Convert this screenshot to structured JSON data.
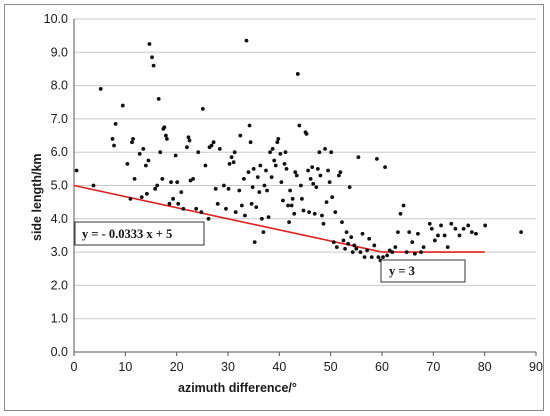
{
  "chart_data": {
    "type": "scatter",
    "title": "",
    "xlabel": "azimuth difference/°",
    "ylabel": "side length/km",
    "xlim": [
      0,
      90
    ],
    "ylim": [
      0,
      10
    ],
    "x_ticks": [
      "0",
      "10",
      "20",
      "30",
      "40",
      "50",
      "60",
      "70",
      "80",
      "90"
    ],
    "y_ticks": [
      "0.0",
      "1.0",
      "2.0",
      "3.0",
      "4.0",
      "5.0",
      "6.0",
      "7.0",
      "8.0",
      "9.0",
      "10.0"
    ],
    "grid": "horizontal",
    "colors": {
      "points": "#111111",
      "line": "#e01e1e",
      "grid": "#c8c8c8"
    },
    "points": [
      [
        0.5,
        5.45
      ],
      [
        3.8,
        5.0
      ],
      [
        5.2,
        7.9
      ],
      [
        7.5,
        6.4
      ],
      [
        7.8,
        6.2
      ],
      [
        8.1,
        6.85
      ],
      [
        9.5,
        7.4
      ],
      [
        10.4,
        5.65
      ],
      [
        11,
        4.6
      ],
      [
        11.3,
        6.3
      ],
      [
        11.5,
        6.4
      ],
      [
        11.8,
        5.2
      ],
      [
        12.8,
        5.95
      ],
      [
        13.2,
        4.65
      ],
      [
        13.5,
        6.1
      ],
      [
        14,
        5.6
      ],
      [
        14.2,
        4.75
      ],
      [
        14.5,
        5.75
      ],
      [
        14.7,
        9.25
      ],
      [
        15.2,
        8.85
      ],
      [
        15.5,
        8.6
      ],
      [
        15.8,
        4.9
      ],
      [
        16.2,
        5.0
      ],
      [
        16.5,
        7.6
      ],
      [
        16.8,
        6.0
      ],
      [
        17.2,
        5.2
      ],
      [
        17.4,
        6.7
      ],
      [
        17.6,
        6.75
      ],
      [
        17.9,
        6.5
      ],
      [
        18.1,
        6.4
      ],
      [
        18.6,
        4.45
      ],
      [
        18.9,
        5.1
      ],
      [
        19.3,
        4.6
      ],
      [
        19.8,
        5.9
      ],
      [
        20.1,
        5.1
      ],
      [
        20.3,
        4.45
      ],
      [
        20.9,
        4.8
      ],
      [
        21.3,
        4.3
      ],
      [
        22,
        6.15
      ],
      [
        22.3,
        6.45
      ],
      [
        22.5,
        6.35
      ],
      [
        22.7,
        5.15
      ],
      [
        23.2,
        5.2
      ],
      [
        23.8,
        4.3
      ],
      [
        24.2,
        6.0
      ],
      [
        24.8,
        4.2
      ],
      [
        25.1,
        7.3
      ],
      [
        25.6,
        5.6
      ],
      [
        26.2,
        4.0
      ],
      [
        26.4,
        6.15
      ],
      [
        26.8,
        6.2
      ],
      [
        27.2,
        6.3
      ],
      [
        27.6,
        4.9
      ],
      [
        28,
        4.45
      ],
      [
        28.4,
        6.1
      ],
      [
        29.2,
        5.0
      ],
      [
        29.6,
        4.3
      ],
      [
        30.1,
        4.9
      ],
      [
        30.3,
        5.65
      ],
      [
        30.7,
        5.85
      ],
      [
        31.1,
        5.7
      ],
      [
        31.3,
        6.0
      ],
      [
        31.5,
        4.2
      ],
      [
        32.2,
        4.85
      ],
      [
        32.4,
        6.5
      ],
      [
        32.7,
        4.4
      ],
      [
        33.1,
        5.2
      ],
      [
        33.3,
        4.1
      ],
      [
        33.6,
        9.35
      ],
      [
        34,
        5.4
      ],
      [
        34.2,
        6.8
      ],
      [
        34.4,
        6.3
      ],
      [
        34.6,
        4.45
      ],
      [
        34.8,
        4.95
      ],
      [
        35,
        5.5
      ],
      [
        35.2,
        3.3
      ],
      [
        35.5,
        4.35
      ],
      [
        35.8,
        5.25
      ],
      [
        36.1,
        4.8
      ],
      [
        36.3,
        5.6
      ],
      [
        36.6,
        4.0
      ],
      [
        36.9,
        3.6
      ],
      [
        37.1,
        5.0
      ],
      [
        37.4,
        5.45
      ],
      [
        37.6,
        4.85
      ],
      [
        37.9,
        4.05
      ],
      [
        38.2,
        6.0
      ],
      [
        38.5,
        5.25
      ],
      [
        38.7,
        6.1
      ],
      [
        39,
        5.75
      ],
      [
        39.3,
        5.6
      ],
      [
        39.6,
        6.3
      ],
      [
        39.8,
        6.4
      ],
      [
        40.2,
        5.95
      ],
      [
        40.4,
        5.1
      ],
      [
        40.7,
        4.55
      ],
      [
        41,
        5.65
      ],
      [
        41.2,
        6.0
      ],
      [
        41.4,
        5.5
      ],
      [
        41.7,
        4.4
      ],
      [
        41.9,
        3.9
      ],
      [
        42.1,
        4.85
      ],
      [
        42.4,
        4.4
      ],
      [
        42.6,
        4.6
      ],
      [
        42.9,
        4.15
      ],
      [
        43.1,
        5.4
      ],
      [
        43.4,
        5.3
      ],
      [
        43.6,
        8.35
      ],
      [
        43.9,
        6.8
      ],
      [
        44.2,
        5.0
      ],
      [
        44.4,
        4.6
      ],
      [
        44.7,
        4.25
      ],
      [
        45.1,
        6.6
      ],
      [
        45.3,
        6.55
      ],
      [
        45.6,
        5.45
      ],
      [
        45.8,
        4.2
      ],
      [
        46.1,
        5.2
      ],
      [
        46.4,
        5.55
      ],
      [
        46.6,
        5.05
      ],
      [
        46.9,
        4.15
      ],
      [
        47.2,
        4.95
      ],
      [
        47.5,
        5.5
      ],
      [
        47.8,
        6.0
      ],
      [
        48,
        5.3
      ],
      [
        48.3,
        4.1
      ],
      [
        48.6,
        3.85
      ],
      [
        48.9,
        6.1
      ],
      [
        49.2,
        4.5
      ],
      [
        49.5,
        5.45
      ],
      [
        49.8,
        5.1
      ],
      [
        50.1,
        6.0
      ],
      [
        50.3,
        4.65
      ],
      [
        50.6,
        3.3
      ],
      [
        50.9,
        4.2
      ],
      [
        51.2,
        3.15
      ],
      [
        51.6,
        5.3
      ],
      [
        51.9,
        5.4
      ],
      [
        52.2,
        3.9
      ],
      [
        52.5,
        3.35
      ],
      [
        52.8,
        3.1
      ],
      [
        53.1,
        3.6
      ],
      [
        53.4,
        3.25
      ],
      [
        53.7,
        4.95
      ],
      [
        54,
        3.45
      ],
      [
        54.3,
        3.0
      ],
      [
        54.6,
        3.2
      ],
      [
        55,
        3.1
      ],
      [
        55.4,
        5.85
      ],
      [
        55.8,
        3.0
      ],
      [
        56.2,
        3.55
      ],
      [
        56.6,
        2.85
      ],
      [
        57.1,
        3.05
      ],
      [
        57.5,
        3.4
      ],
      [
        58,
        2.85
      ],
      [
        58.5,
        3.2
      ],
      [
        59,
        5.8
      ],
      [
        59.3,
        2.85
      ],
      [
        59.7,
        2.75
      ],
      [
        60.2,
        2.85
      ],
      [
        60.6,
        5.55
      ],
      [
        61,
        2.9
      ],
      [
        61.5,
        3.05
      ],
      [
        62,
        3.0
      ],
      [
        62.6,
        3.15
      ],
      [
        63.1,
        3.6
      ],
      [
        63.6,
        4.15
      ],
      [
        64.2,
        4.4
      ],
      [
        64.8,
        3.0
      ],
      [
        65.3,
        3.6
      ],
      [
        65.9,
        3.3
      ],
      [
        66.4,
        2.95
      ],
      [
        67,
        3.55
      ],
      [
        67.6,
        3.0
      ],
      [
        68.1,
        3.15
      ],
      [
        69.3,
        3.85
      ],
      [
        69.7,
        3.7
      ],
      [
        70.3,
        3.35
      ],
      [
        70.9,
        3.5
      ],
      [
        71.5,
        3.8
      ],
      [
        72.2,
        3.5
      ],
      [
        72.8,
        3.15
      ],
      [
        73.5,
        3.85
      ],
      [
        74.3,
        3.7
      ],
      [
        75.1,
        3.5
      ],
      [
        75.9,
        3.7
      ],
      [
        76.8,
        3.8
      ],
      [
        77.5,
        3.6
      ],
      [
        78.3,
        3.55
      ],
      [
        80.1,
        3.8
      ],
      [
        87.1,
        3.6
      ]
    ],
    "trend_line": [
      [
        0,
        5.0
      ],
      [
        60,
        3.0
      ],
      [
        80,
        3.0
      ]
    ],
    "annotations": [
      "y = - 0.0333 x + 5",
      "y = 3"
    ]
  }
}
